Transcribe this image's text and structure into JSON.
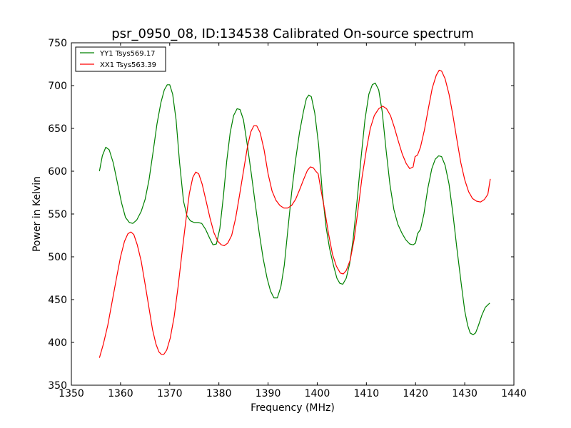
{
  "chart_data": {
    "type": "line",
    "title": "psr_0950_08, ID:134538 Calibrated On-source spectrum",
    "xlabel": "Frequency (MHz)",
    "ylabel": "Power in Kelvin",
    "xlim": [
      1350,
      1440
    ],
    "ylim": [
      350,
      750
    ],
    "xticks": [
      "1350",
      "1360",
      "1370",
      "1380",
      "1390",
      "1400",
      "1410",
      "1420",
      "1430",
      "1440"
    ],
    "yticks": [
      "350",
      "400",
      "450",
      "500",
      "550",
      "600",
      "650",
      "700",
      "750"
    ],
    "grid": false,
    "legend_position": "top-left",
    "series": [
      {
        "name": "YY1 Tsys569.17",
        "color": "#008000",
        "points": [
          [
            1355.7,
            600
          ],
          [
            1356.3,
            618
          ],
          [
            1357.0,
            628
          ],
          [
            1357.7,
            625
          ],
          [
            1358.5,
            610
          ],
          [
            1359.3,
            588
          ],
          [
            1360.2,
            563
          ],
          [
            1361.0,
            546
          ],
          [
            1361.8,
            540
          ],
          [
            1362.5,
            539
          ],
          [
            1363.3,
            543
          ],
          [
            1364.2,
            553
          ],
          [
            1365.0,
            567
          ],
          [
            1365.8,
            590
          ],
          [
            1366.6,
            622
          ],
          [
            1367.4,
            655
          ],
          [
            1368.2,
            680
          ],
          [
            1368.9,
            695
          ],
          [
            1369.5,
            701
          ],
          [
            1370.0,
            701
          ],
          [
            1370.6,
            690
          ],
          [
            1371.3,
            660
          ],
          [
            1372.0,
            610
          ],
          [
            1372.8,
            565
          ],
          [
            1373.5,
            548
          ],
          [
            1374.2,
            542
          ],
          [
            1375.0,
            540
          ],
          [
            1375.8,
            540
          ],
          [
            1376.5,
            539
          ],
          [
            1377.3,
            532
          ],
          [
            1378.1,
            522
          ],
          [
            1378.8,
            514
          ],
          [
            1379.5,
            515
          ],
          [
            1380.2,
            533
          ],
          [
            1380.9,
            570
          ],
          [
            1381.6,
            612
          ],
          [
            1382.3,
            645
          ],
          [
            1383.0,
            665
          ],
          [
            1383.7,
            673
          ],
          [
            1384.3,
            672
          ],
          [
            1385.0,
            660
          ],
          [
            1385.8,
            630
          ],
          [
            1386.6,
            597
          ],
          [
            1387.4,
            562
          ],
          [
            1388.2,
            528
          ],
          [
            1389.0,
            498
          ],
          [
            1389.8,
            475
          ],
          [
            1390.5,
            460
          ],
          [
            1391.2,
            452
          ],
          [
            1391.9,
            452
          ],
          [
            1392.6,
            465
          ],
          [
            1393.3,
            490
          ],
          [
            1394.0,
            530
          ],
          [
            1394.8,
            575
          ],
          [
            1395.6,
            613
          ],
          [
            1396.4,
            645
          ],
          [
            1397.2,
            670
          ],
          [
            1397.8,
            685
          ],
          [
            1398.3,
            689
          ],
          [
            1398.8,
            687
          ],
          [
            1399.5,
            668
          ],
          [
            1400.3,
            630
          ],
          [
            1401.0,
            578
          ],
          [
            1401.8,
            535
          ],
          [
            1402.5,
            510
          ],
          [
            1403.3,
            490
          ],
          [
            1404.0,
            475
          ],
          [
            1404.6,
            469
          ],
          [
            1405.2,
            468
          ],
          [
            1405.9,
            475
          ],
          [
            1406.6,
            492
          ],
          [
            1407.3,
            520
          ],
          [
            1408.1,
            565
          ],
          [
            1408.9,
            615
          ],
          [
            1409.7,
            660
          ],
          [
            1410.5,
            690
          ],
          [
            1411.2,
            701
          ],
          [
            1411.8,
            703
          ],
          [
            1412.5,
            695
          ],
          [
            1413.2,
            670
          ],
          [
            1414.0,
            625
          ],
          [
            1414.8,
            584
          ],
          [
            1415.6,
            555
          ],
          [
            1416.4,
            538
          ],
          [
            1417.2,
            528
          ],
          [
            1418.0,
            520
          ],
          [
            1418.8,
            515
          ],
          [
            1419.5,
            514
          ],
          [
            1420.0,
            516
          ],
          [
            1420.4,
            527
          ],
          [
            1421.0,
            532
          ],
          [
            1421.7,
            550
          ],
          [
            1422.5,
            580
          ],
          [
            1423.3,
            603
          ],
          [
            1424.0,
            614
          ],
          [
            1424.7,
            618
          ],
          [
            1425.3,
            617
          ],
          [
            1426.0,
            607
          ],
          [
            1426.8,
            585
          ],
          [
            1427.6,
            550
          ],
          [
            1428.4,
            510
          ],
          [
            1429.3,
            468
          ],
          [
            1430.0,
            437
          ],
          [
            1430.6,
            420
          ],
          [
            1431.1,
            411
          ],
          [
            1431.7,
            409
          ],
          [
            1432.2,
            411
          ],
          [
            1432.8,
            420
          ],
          [
            1433.5,
            432
          ],
          [
            1434.2,
            441
          ],
          [
            1435.1,
            446
          ]
        ]
      },
      {
        "name": "XX1 Tsys563.39",
        "color": "#ff0000",
        "points": [
          [
            1355.7,
            382
          ],
          [
            1356.5,
            398
          ],
          [
            1357.4,
            420
          ],
          [
            1358.3,
            448
          ],
          [
            1359.2,
            476
          ],
          [
            1360.0,
            500
          ],
          [
            1360.8,
            518
          ],
          [
            1361.5,
            527
          ],
          [
            1362.1,
            529
          ],
          [
            1362.7,
            526
          ],
          [
            1363.4,
            514
          ],
          [
            1364.2,
            495
          ],
          [
            1365.0,
            468
          ],
          [
            1365.8,
            440
          ],
          [
            1366.5,
            415
          ],
          [
            1367.2,
            398
          ],
          [
            1367.8,
            389
          ],
          [
            1368.3,
            386
          ],
          [
            1368.8,
            386
          ],
          [
            1369.4,
            391
          ],
          [
            1370.1,
            405
          ],
          [
            1370.9,
            430
          ],
          [
            1371.7,
            465
          ],
          [
            1372.5,
            505
          ],
          [
            1373.3,
            543
          ],
          [
            1374.0,
            574
          ],
          [
            1374.7,
            593
          ],
          [
            1375.3,
            599
          ],
          [
            1375.9,
            597
          ],
          [
            1376.6,
            585
          ],
          [
            1377.4,
            565
          ],
          [
            1378.2,
            545
          ],
          [
            1379.0,
            528
          ],
          [
            1379.8,
            518
          ],
          [
            1380.5,
            514
          ],
          [
            1381.1,
            513
          ],
          [
            1381.8,
            516
          ],
          [
            1382.6,
            525
          ],
          [
            1383.4,
            545
          ],
          [
            1384.2,
            572
          ],
          [
            1385.0,
            600
          ],
          [
            1385.8,
            628
          ],
          [
            1386.5,
            646
          ],
          [
            1387.1,
            653
          ],
          [
            1387.7,
            653
          ],
          [
            1388.4,
            645
          ],
          [
            1389.2,
            625
          ],
          [
            1390.0,
            597
          ],
          [
            1390.8,
            577
          ],
          [
            1391.6,
            566
          ],
          [
            1392.4,
            560
          ],
          [
            1393.2,
            557
          ],
          [
            1394.0,
            557
          ],
          [
            1394.8,
            560
          ],
          [
            1395.6,
            567
          ],
          [
            1396.4,
            578
          ],
          [
            1397.2,
            590
          ],
          [
            1398.0,
            601
          ],
          [
            1398.6,
            605
          ],
          [
            1399.2,
            604
          ],
          [
            1399.7,
            600
          ],
          [
            1400.2,
            597
          ],
          [
            1400.7,
            580
          ],
          [
            1401.5,
            555
          ],
          [
            1402.3,
            527
          ],
          [
            1403.1,
            503
          ],
          [
            1403.9,
            489
          ],
          [
            1404.7,
            481
          ],
          [
            1405.3,
            480
          ],
          [
            1405.9,
            484
          ],
          [
            1406.7,
            496
          ],
          [
            1407.5,
            520
          ],
          [
            1408.3,
            555
          ],
          [
            1409.1,
            592
          ],
          [
            1410.0,
            625
          ],
          [
            1410.8,
            650
          ],
          [
            1411.6,
            665
          ],
          [
            1412.5,
            673
          ],
          [
            1413.3,
            676
          ],
          [
            1414.1,
            673
          ],
          [
            1414.9,
            665
          ],
          [
            1415.7,
            651
          ],
          [
            1416.5,
            635
          ],
          [
            1417.3,
            620
          ],
          [
            1418.1,
            609
          ],
          [
            1418.8,
            603
          ],
          [
            1419.5,
            605
          ],
          [
            1419.9,
            617
          ],
          [
            1420.4,
            619
          ],
          [
            1421.0,
            628
          ],
          [
            1421.8,
            648
          ],
          [
            1422.6,
            673
          ],
          [
            1423.4,
            697
          ],
          [
            1424.2,
            712
          ],
          [
            1424.8,
            718
          ],
          [
            1425.3,
            717
          ],
          [
            1426.0,
            708
          ],
          [
            1426.8,
            690
          ],
          [
            1427.6,
            665
          ],
          [
            1428.4,
            637
          ],
          [
            1429.2,
            610
          ],
          [
            1430.0,
            590
          ],
          [
            1430.8,
            576
          ],
          [
            1431.6,
            568
          ],
          [
            1432.4,
            565
          ],
          [
            1433.2,
            564
          ],
          [
            1434.0,
            567
          ],
          [
            1434.7,
            573
          ],
          [
            1435.2,
            591
          ]
        ]
      }
    ]
  }
}
